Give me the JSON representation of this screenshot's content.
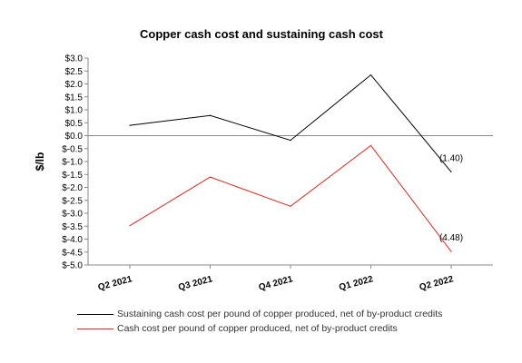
{
  "chart_data": {
    "type": "line",
    "title": "Copper cash cost and sustaining cash cost",
    "ylabel": "$/lb",
    "xlabel": "",
    "categories": [
      "Q2 2021",
      "Q3 2021",
      "Q4 2021",
      "Q1 2022",
      "Q2 2022"
    ],
    "ylim": [
      -5.0,
      3.0
    ],
    "yticks": [
      "$3.0",
      "$2.5",
      "$2.0",
      "$1.5",
      "$1.0",
      "$0.5",
      "$0.0",
      "$-0.5",
      "$-1.0",
      "$-1.5",
      "$-2.0",
      "$-2.5",
      "$-3.0",
      "$-3.5",
      "$-4.0",
      "$-4.5",
      "$-5.0"
    ],
    "ytick_values": [
      3.0,
      2.5,
      2.0,
      1.5,
      1.0,
      0.5,
      0.0,
      -0.5,
      -1.0,
      -1.5,
      -2.0,
      -2.5,
      -3.0,
      -3.5,
      -4.0,
      -4.5,
      -5.0
    ],
    "grid": false,
    "legend_position": "bottom",
    "series": [
      {
        "name": "Sustaining cash cost per pound of copper produced, net of by-product credits",
        "color": "#000000",
        "values": [
          0.4,
          0.78,
          -0.18,
          2.35,
          -1.4
        ],
        "end_label": "(1.40)"
      },
      {
        "name": "Cash cost per pound of copper produced, net of by-product credits",
        "color": "#e3271c",
        "values": [
          -3.48,
          -1.6,
          -2.73,
          -0.38,
          -4.48
        ],
        "end_label": "(4.48)"
      }
    ]
  }
}
